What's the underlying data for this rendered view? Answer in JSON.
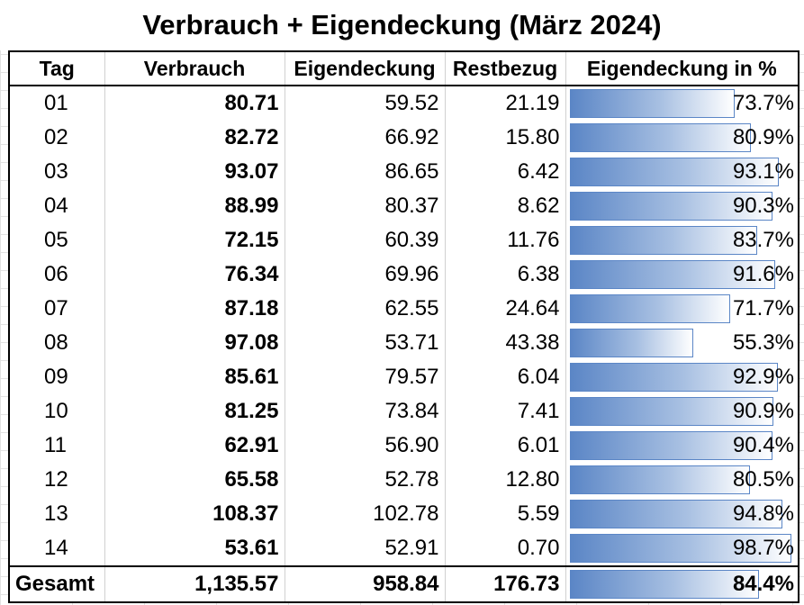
{
  "title": "Verbrauch + Eigendeckung (März 2024)",
  "headers": {
    "tag": "Tag",
    "verbrauch": "Verbrauch",
    "eigendeckung": "Eigendeckung",
    "restbezug": "Restbezug",
    "pct": "Eigendeckung in %"
  },
  "rows": [
    {
      "tag": "01",
      "verbrauch": "80.71",
      "eigendeckung": "59.52",
      "restbezug": "21.19",
      "pct_label": "73.7%",
      "pct": 73.7
    },
    {
      "tag": "02",
      "verbrauch": "82.72",
      "eigendeckung": "66.92",
      "restbezug": "15.80",
      "pct_label": "80.9%",
      "pct": 80.9
    },
    {
      "tag": "03",
      "verbrauch": "93.07",
      "eigendeckung": "86.65",
      "restbezug": "6.42",
      "pct_label": "93.1%",
      "pct": 93.1
    },
    {
      "tag": "04",
      "verbrauch": "88.99",
      "eigendeckung": "80.37",
      "restbezug": "8.62",
      "pct_label": "90.3%",
      "pct": 90.3
    },
    {
      "tag": "05",
      "verbrauch": "72.15",
      "eigendeckung": "60.39",
      "restbezug": "11.76",
      "pct_label": "83.7%",
      "pct": 83.7
    },
    {
      "tag": "06",
      "verbrauch": "76.34",
      "eigendeckung": "69.96",
      "restbezug": "6.38",
      "pct_label": "91.6%",
      "pct": 91.6
    },
    {
      "tag": "07",
      "verbrauch": "87.18",
      "eigendeckung": "62.55",
      "restbezug": "24.64",
      "pct_label": "71.7%",
      "pct": 71.7
    },
    {
      "tag": "08",
      "verbrauch": "97.08",
      "eigendeckung": "53.71",
      "restbezug": "43.38",
      "pct_label": "55.3%",
      "pct": 55.3
    },
    {
      "tag": "09",
      "verbrauch": "85.61",
      "eigendeckung": "79.57",
      "restbezug": "6.04",
      "pct_label": "92.9%",
      "pct": 92.9
    },
    {
      "tag": "10",
      "verbrauch": "81.25",
      "eigendeckung": "73.84",
      "restbezug": "7.41",
      "pct_label": "90.9%",
      "pct": 90.9
    },
    {
      "tag": "11",
      "verbrauch": "62.91",
      "eigendeckung": "56.90",
      "restbezug": "6.01",
      "pct_label": "90.4%",
      "pct": 90.4
    },
    {
      "tag": "12",
      "verbrauch": "65.58",
      "eigendeckung": "52.78",
      "restbezug": "12.80",
      "pct_label": "80.5%",
      "pct": 80.5
    },
    {
      "tag": "13",
      "verbrauch": "108.37",
      "eigendeckung": "102.78",
      "restbezug": "5.59",
      "pct_label": "94.8%",
      "pct": 94.8
    },
    {
      "tag": "14",
      "verbrauch": "53.61",
      "eigendeckung": "52.91",
      "restbezug": "0.70",
      "pct_label": "98.7%",
      "pct": 98.7
    }
  ],
  "total": {
    "label": "Gesamt",
    "verbrauch": "1,135.57",
    "eigendeckung": "958.84",
    "restbezug": "176.73",
    "pct_label": "84.4%",
    "pct": 84.4
  },
  "bar_color": "#5b86c6"
}
